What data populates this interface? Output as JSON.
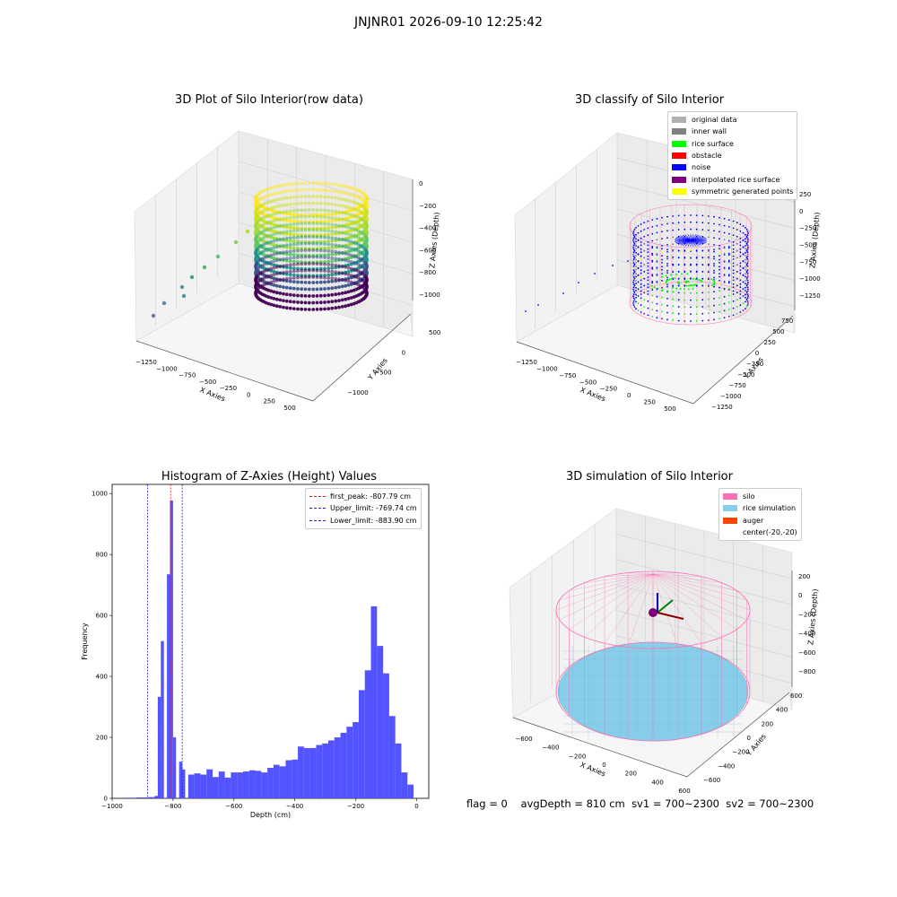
{
  "figure_title": "JNJNR01 2026-09-10 12:25:42",
  "status": {
    "flag": "flag = 0",
    "avg_depth": "avgDepth = 810 cm",
    "sv1": "sv1 = 700~2300",
    "sv2": "sv2 = 700~2300"
  },
  "colors": {
    "hist_bar": "#4a4aff",
    "first_peak": "#e31a1c",
    "limits": "#1a1acc",
    "silo": "#ff6eb4",
    "rice": "#87ceeb",
    "auger": "#ff4500",
    "rice_surface": "#00ff00",
    "noise": "#0000ff",
    "inner_wall": "#808080",
    "original": "#b0b0b0",
    "obstacle": "#ff0000",
    "interpolated": "#800080",
    "symmetric": "#ffff00"
  },
  "chart_data": [
    {
      "type": "scatter",
      "title": "3D Plot of Silo Interior(row data)",
      "xlabel": "X Axies",
      "ylabel": "Y Axies",
      "zlabel": "Z Axies (Depth)",
      "x_ticks": [
        "−1250",
        "−1000",
        "−750",
        "−500",
        "−250",
        "0",
        "250",
        "500"
      ],
      "y_ticks": [
        "−1000",
        "−500",
        "0",
        "500"
      ],
      "z_ticks": [
        "0",
        "−200",
        "−400",
        "−600",
        "−800",
        "−1000"
      ],
      "colormap": "viridis"
    },
    {
      "type": "scatter",
      "title": "3D classify of Silo Interior",
      "xlabel": "X Axies",
      "ylabel": "Y Axies",
      "zlabel": "Z Axies (Depth)",
      "x_ticks": [
        "−1250",
        "−1000",
        "−750",
        "−500",
        "−250",
        "0",
        "250",
        "500"
      ],
      "y_ticks": [
        "−1250",
        "−1000",
        "−750",
        "−500",
        "−250",
        "0",
        "250",
        "500",
        "750"
      ],
      "z_ticks": [
        "250",
        "0",
        "−250",
        "−500",
        "−750",
        "−1000",
        "−1250"
      ],
      "legend": [
        {
          "label": "original data",
          "color": "#b0b0b0"
        },
        {
          "label": "inner wall",
          "color": "#808080"
        },
        {
          "label": "rice surface",
          "color": "#00ff00"
        },
        {
          "label": "obstacle",
          "color": "#ff0000"
        },
        {
          "label": "noise",
          "color": "#0000ff"
        },
        {
          "label": "interpolated rice surface",
          "color": "#800080"
        },
        {
          "label": "symmetric generated points",
          "color": "#ffff00"
        }
      ],
      "legend_position": "top-right"
    },
    {
      "type": "bar",
      "title": "Histogram of Z-Axies (Height) Values",
      "xlabel": "Depth (cm)",
      "ylabel": "Frequency",
      "xlim": [
        -1000,
        0
      ],
      "ylim": [
        0,
        1000
      ],
      "x_ticks": [
        -1000,
        -800,
        -600,
        -400,
        -200,
        0
      ],
      "y_ticks": [
        0,
        200,
        400,
        600,
        800,
        1000
      ],
      "bin_width": 20,
      "bins": [
        [
          -960,
          2
        ],
        [
          -940,
          2
        ],
        [
          -920,
          3
        ],
        [
          -900,
          3
        ],
        [
          -880,
          4
        ],
        [
          -860,
          5
        ],
        [
          -860,
          8
        ],
        [
          -850,
          333
        ],
        [
          -840,
          516
        ],
        [
          -820,
          735
        ],
        [
          -810,
          977
        ],
        [
          -800,
          200
        ],
        [
          -780,
          120
        ],
        [
          -770,
          95
        ],
        [
          -750,
          78
        ],
        [
          -730,
          82
        ],
        [
          -710,
          78
        ],
        [
          -690,
          95
        ],
        [
          -670,
          70
        ],
        [
          -650,
          88
        ],
        [
          -630,
          68
        ],
        [
          -610,
          85
        ],
        [
          -590,
          85
        ],
        [
          -570,
          88
        ],
        [
          -550,
          92
        ],
        [
          -530,
          90
        ],
        [
          -510,
          85
        ],
        [
          -490,
          100
        ],
        [
          -470,
          110
        ],
        [
          -450,
          105
        ],
        [
          -430,
          125
        ],
        [
          -410,
          127
        ],
        [
          -390,
          170
        ],
        [
          -370,
          165
        ],
        [
          -350,
          165
        ],
        [
          -330,
          175
        ],
        [
          -310,
          180
        ],
        [
          -290,
          190
        ],
        [
          -270,
          200
        ],
        [
          -250,
          215
        ],
        [
          -230,
          235
        ],
        [
          -210,
          250
        ],
        [
          -190,
          355
        ],
        [
          -170,
          420
        ],
        [
          -150,
          630
        ],
        [
          -130,
          500
        ],
        [
          -110,
          410
        ],
        [
          -90,
          270
        ],
        [
          -70,
          180
        ],
        [
          -50,
          85
        ],
        [
          -30,
          45
        ]
      ],
      "lines": [
        {
          "label": "first_peak: -807.79 cm",
          "x": -807.79,
          "color": "#e31a1c"
        },
        {
          "label": "Upper_limit: -769.74 cm",
          "x": -769.74,
          "color": "#1a1acc"
        },
        {
          "label": "Lower_limit: -883.90 cm",
          "x": -883.9,
          "color": "#1a1acc"
        }
      ],
      "legend_position": "top-right"
    },
    {
      "type": "scatter",
      "title": "3D simulation of Silo Interior",
      "xlabel": "X Axies",
      "ylabel": "Y Axies",
      "zlabel": "Z Axies (Depth)",
      "x_ticks": [
        "−600",
        "−400",
        "−200",
        "0",
        "200",
        "400",
        "600"
      ],
      "y_ticks": [
        "−600",
        "−400",
        "−200",
        "0",
        "200",
        "400",
        "600"
      ],
      "z_ticks": [
        "200",
        "0",
        "−200",
        "−400",
        "−600",
        "−800"
      ],
      "legend": [
        {
          "label": "silo",
          "color": "#ff6eb4"
        },
        {
          "label": "rice simulation",
          "color": "#87ceeb"
        },
        {
          "label": "auger",
          "color": "#ff4500"
        },
        {
          "label": "center(-20,-20)",
          "color": ""
        }
      ],
      "legend_position": "top-right"
    }
  ]
}
